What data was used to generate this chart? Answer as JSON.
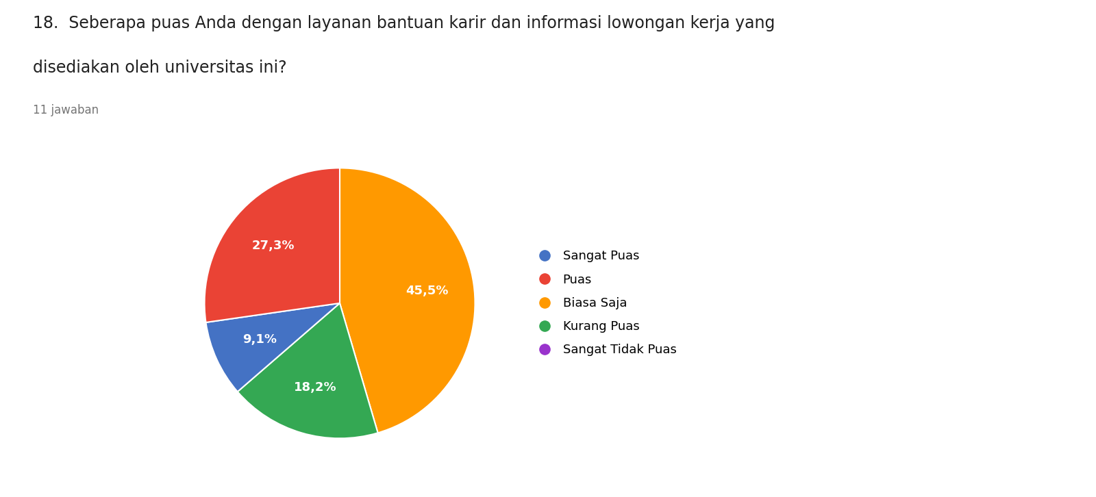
{
  "title_line1": "18.  Seberapa puas Anda dengan layanan bantuan karir dan informasi lowongan kerja yang",
  "title_line2": "disediakan oleh universitas ini?",
  "subtitle": "11 jawaban",
  "slices": [
    45.5,
    18.2,
    9.1,
    27.3
  ],
  "labels_pie": [
    "Biasa Saja",
    "Kurang Puas",
    "Sangat Puas",
    "Puas"
  ],
  "colors_pie": [
    "#FF9900",
    "#34A853",
    "#4472C4",
    "#EA4335"
  ],
  "pct_labels": [
    "45,5%",
    "18,2%",
    "9,1%",
    "27,3%"
  ],
  "legend_labels": [
    "Sangat Puas",
    "Puas",
    "Biasa Saja",
    "Kurang Puas",
    "Sangat Tidak Puas"
  ],
  "legend_colors": [
    "#4472C4",
    "#EA4335",
    "#FF9900",
    "#34A853",
    "#9933CC"
  ],
  "startangle": 90,
  "background_color": "#ffffff",
  "title_fontsize": 17,
  "subtitle_fontsize": 12,
  "legend_fontsize": 13
}
